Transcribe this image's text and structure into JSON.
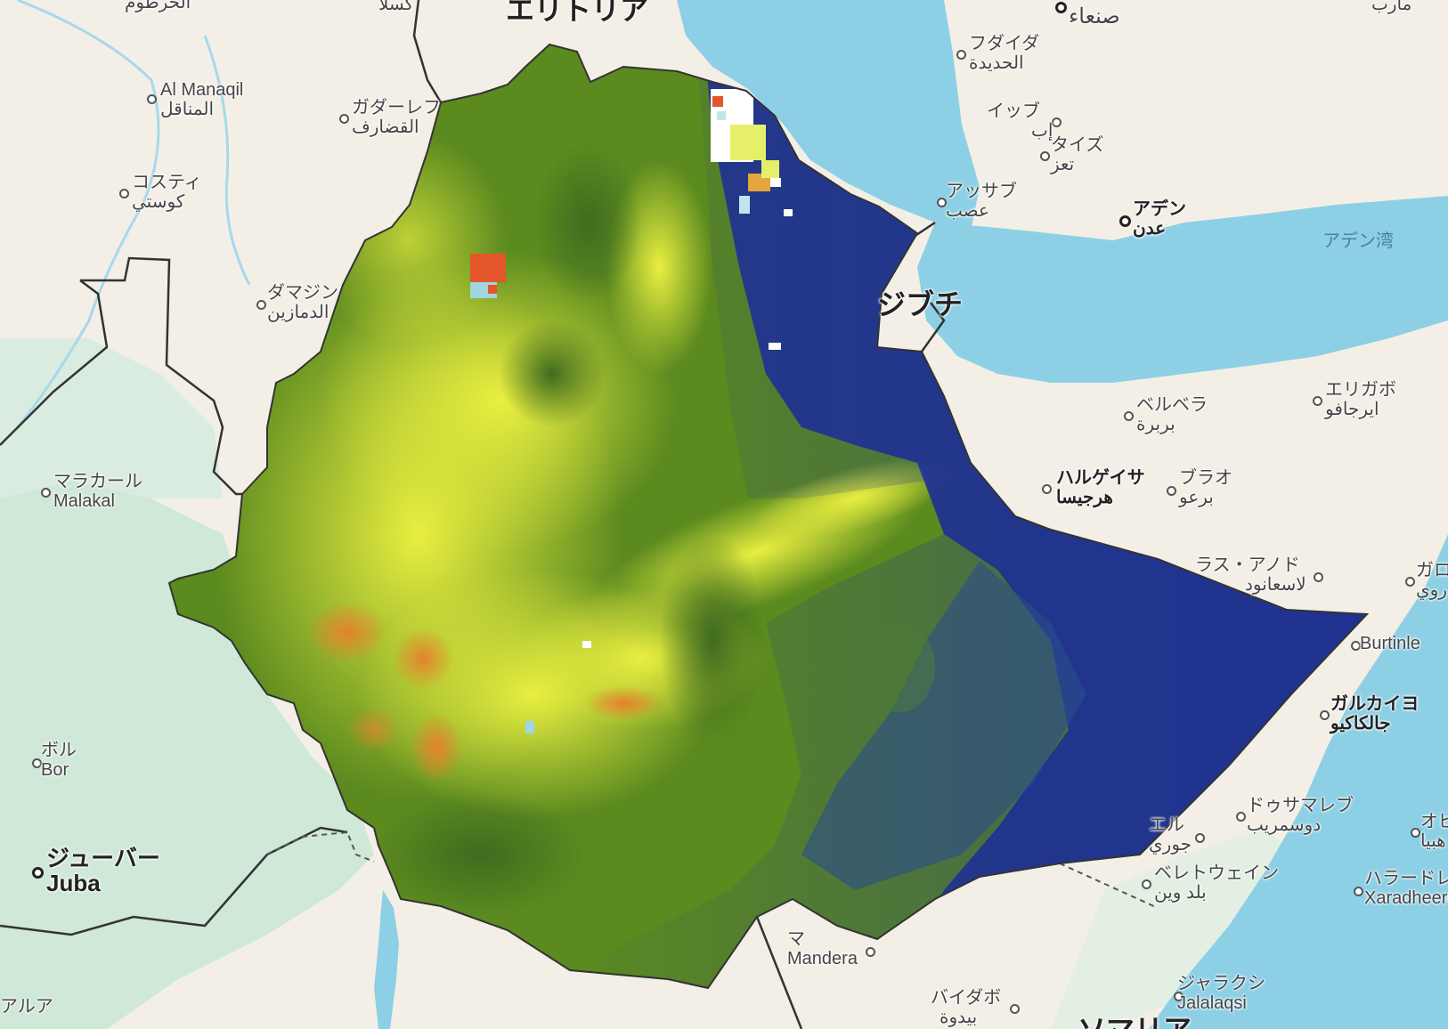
{
  "map": {
    "countries": [
      {
        "id": "eritrea",
        "text": "エリトリア"
      },
      {
        "id": "djibouti",
        "text": "ジブチ"
      },
      {
        "id": "somalia-partial",
        "text": "ソマリア"
      }
    ],
    "water": [
      {
        "id": "gulf-of-aden",
        "text": "アデン湾"
      }
    ],
    "places": [
      {
        "id": "khartoum",
        "ja": "",
        "ar": "الخرطوم"
      },
      {
        "id": "kassala",
        "ja": "",
        "ar": "كسلا"
      },
      {
        "id": "al-manaqil",
        "ja": "Al Manaqil",
        "ar": "المناقل"
      },
      {
        "id": "gedaref",
        "ja": "ガダーレフ",
        "ar": "القضارف"
      },
      {
        "id": "kosti",
        "ja": "コスティ",
        "ar": "كوستي"
      },
      {
        "id": "damazin",
        "ja": "ダマジン",
        "ar": "الدمازين"
      },
      {
        "id": "malakal",
        "ja": "マラカール",
        "ar": "Malakal"
      },
      {
        "id": "bor",
        "ja": "ボル",
        "ar": "Bor"
      },
      {
        "id": "juba",
        "ja": "ジューバー",
        "ar": "Juba"
      },
      {
        "id": "aweil",
        "ja": "アルア",
        "ar": ""
      },
      {
        "id": "sanaa",
        "ja": "",
        "ar": "صنعاء"
      },
      {
        "id": "marib",
        "ja": "",
        "ar": "مأرب"
      },
      {
        "id": "hodeidah",
        "ja": "フダイダ",
        "ar": "الحديدة"
      },
      {
        "id": "ibb",
        "ja": "イッブ",
        "ar": "إب"
      },
      {
        "id": "taiz",
        "ja": "タイズ",
        "ar": "تعز"
      },
      {
        "id": "aden",
        "ja": "アデン",
        "ar": "عدن"
      },
      {
        "id": "assab",
        "ja": "アッサブ",
        "ar": "عصب"
      },
      {
        "id": "berbera",
        "ja": "ベルベラ",
        "ar": "بربرة"
      },
      {
        "id": "erigavo",
        "ja": "エリガボ",
        "ar": "ايرجافو"
      },
      {
        "id": "hargeisa",
        "ja": "ハルゲイサ",
        "ar": "هرجيسا"
      },
      {
        "id": "burao",
        "ja": "ブラオ",
        "ar": "برعو"
      },
      {
        "id": "las-anod",
        "ja": "ラス・アノド",
        "ar": "لاسعانود"
      },
      {
        "id": "garowe",
        "ja": "ガロ",
        "ar": "روي"
      },
      {
        "id": "burtinle",
        "ja": "Burtinle",
        "ar": ""
      },
      {
        "id": "galkayo",
        "ja": "ガルカイヨ",
        "ar": "جالكاكيو"
      },
      {
        "id": "dusmareb",
        "ja": "ドゥサマレブ",
        "ar": "دوسمريب"
      },
      {
        "id": "jowhar-partial",
        "ja": "エル",
        "ar": "جوري"
      },
      {
        "id": "beledweyne",
        "ja": "ベレトウェイン",
        "ar": "بلد وين"
      },
      {
        "id": "obbia",
        "ja": "オビ",
        "ar": "هبيا"
      },
      {
        "id": "xarardheere",
        "ja": "ハラードレ",
        "ar": "Xaradheere"
      },
      {
        "id": "mandera",
        "ja": "マ",
        "ar": "Mandera"
      },
      {
        "id": "baidoa",
        "ja": "バイダボ",
        "ar": "بيدوة"
      },
      {
        "id": "jalalaqsi",
        "ja": "ジャラクシ",
        "ar": "Jalalaqsi"
      }
    ]
  }
}
